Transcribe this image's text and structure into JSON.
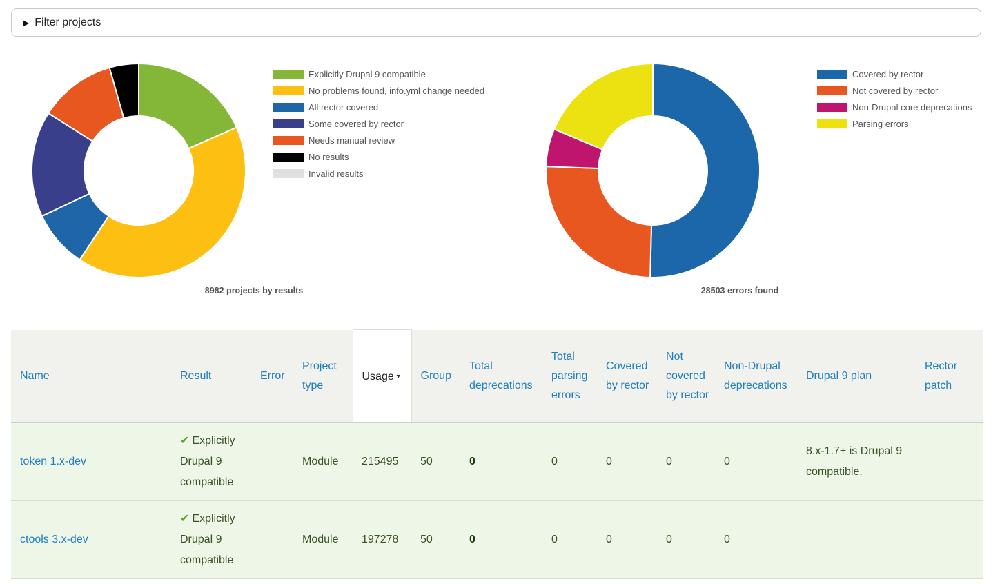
{
  "filter": {
    "label": "Filter projects"
  },
  "chart_data": [
    {
      "type": "pie",
      "title": "8982 projects by results",
      "categories": [
        "Explicitly Drupal 9 compatible",
        "No problems found, info.yml change needed",
        "All rector covered",
        "Some covered by rector",
        "Needs manual review",
        "No results",
        "Invalid results"
      ],
      "values": [
        1653,
        3673,
        781,
        1437,
        1042,
        396,
        0
      ],
      "colors": [
        "#84b637",
        "#fdbf12",
        "#1f66a9",
        "#3a3f8c",
        "#e8571f",
        "#000000",
        "#e0e0e0"
      ]
    },
    {
      "type": "pie",
      "title": "28503 errors found",
      "categories": [
        "Covered by rector",
        "Not covered by rector",
        "Non-Drupal core deprecations",
        "Parsing errors"
      ],
      "values": [
        14366,
        7185,
        1624,
        5328
      ],
      "colors": [
        "#1c66aa",
        "#e95720",
        "#c0156f",
        "#ece212"
      ]
    }
  ],
  "table": {
    "headers": {
      "name": "Name",
      "result": "Result",
      "error": "Error",
      "project_type": "Project type",
      "usage": "Usage",
      "group": "Group",
      "total_deprecations": "Total deprecations",
      "total_parsing_errors": "Total parsing errors",
      "covered_by_rector": "Covered by rector",
      "not_covered_by_rector": "Not covered by rector",
      "non_drupal_deprecations": "Non-Drupal deprecations",
      "drupal9_plan": "Drupal 9 plan",
      "rector_patch": "Rector patch"
    },
    "rows": [
      {
        "name": "token 1.x-dev",
        "result": "Explicitly Drupal 9 compatible",
        "error": "",
        "project_type": "Module",
        "usage": "215495",
        "group": "50",
        "total_deprecations": "0",
        "total_parsing_errors": "0",
        "covered_by_rector": "0",
        "not_covered_by_rector": "0",
        "non_drupal_deprecations": "0",
        "drupal9_plan": "8.x-1.7+ is Drupal 9 compatible.",
        "rector_patch": ""
      },
      {
        "name": "ctools 3.x-dev",
        "result": "Explicitly Drupal 9 compatible",
        "error": "",
        "project_type": "Module",
        "usage": "197278",
        "group": "50",
        "total_deprecations": "0",
        "total_parsing_errors": "0",
        "covered_by_rector": "0",
        "not_covered_by_rector": "0",
        "non_drupal_deprecations": "0",
        "drupal9_plan": "",
        "rector_patch": ""
      }
    ]
  }
}
